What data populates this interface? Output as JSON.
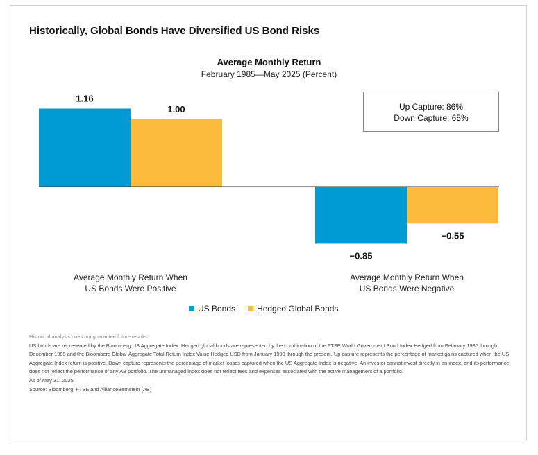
{
  "headline": "Historically, Global Bonds Have Diversified US Bond Risks",
  "capture": {
    "up": "Up Capture: 86%",
    "down": "Down Capture: 65%"
  },
  "legend": [
    {
      "name": "US Bonds",
      "color": "#009ad4"
    },
    {
      "name": "Hedged Global Bonds",
      "color": "#fbbb3d"
    }
  ],
  "notes": {
    "disclaimer": "Historical analysis does not guarantee future results.",
    "body": "US bonds are represented by the Bloomberg US Aggregate Index. Hedged global bonds are represented by the combination of the FTSE World Government Bond Index Hedged from February 1985 through December 1989 and the Bloomberg Global-Aggregate Total Return Index Value Hedged USD from January 1990 through the present. Up capture represents the percentage of market gains captured when the US Aggregate Index return is positive. Down capture represents the percentage of market losses captured when the US Aggregate Index is negative. An investor cannot invest directly in an index, and its performance does not reflect the performance of any AB portfolio. The unmanaged index does not reflect fees and expenses associated with the active management of a portfolio.",
    "date": "As of May 31, 2025",
    "source": "Source: Bloomberg, FTSE and AllianceBernstein (AB)"
  },
  "chart_data": {
    "type": "bar",
    "title": "Average Monthly Return",
    "subtitle": "February 1985—May 2025 (Percent)",
    "categories": [
      {
        "line1": "Average Monthly Return When",
        "line2": "US Bonds Were Positive"
      },
      {
        "line1": "Average Monthly Return When",
        "line2": "US Bonds Were Negative"
      }
    ],
    "series": [
      {
        "name": "US Bonds",
        "color": "#009ad4",
        "values": [
          1.16,
          -0.85
        ],
        "labels": [
          "1.16",
          "−0.85"
        ]
      },
      {
        "name": "Hedged Global Bonds",
        "color": "#fbbb3d",
        "values": [
          1.0,
          -0.55
        ],
        "labels": [
          "1.00",
          "−0.55"
        ]
      }
    ],
    "ylim": [
      -0.85,
      1.16
    ],
    "grid": false,
    "legend_position": "bottom"
  }
}
